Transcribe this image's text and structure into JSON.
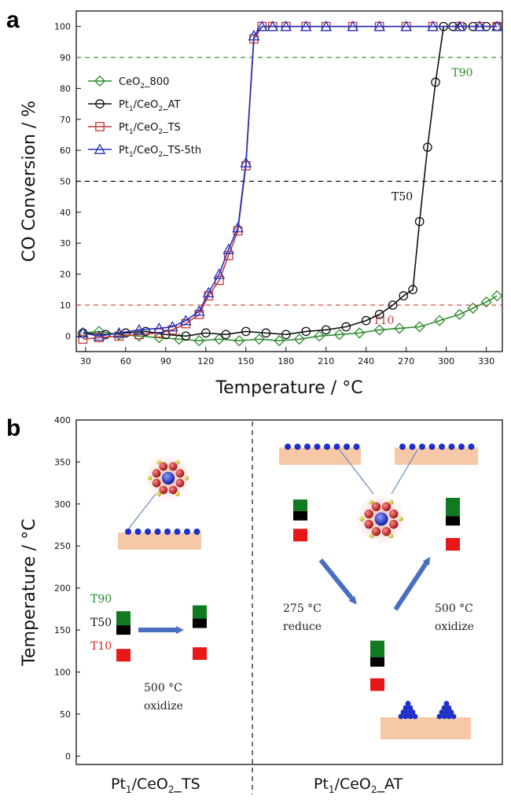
{
  "panel_a": {
    "letter": "a",
    "chart_data": {
      "type": "line",
      "title": "",
      "xlabel": "Temperature / °C",
      "ylabel": "CO Conversion / %",
      "xlim": [
        23,
        342
      ],
      "ylim": [
        -5,
        105
      ],
      "xticks": [
        30,
        60,
        90,
        120,
        150,
        180,
        210,
        240,
        270,
        300,
        330
      ],
      "yticks": [
        0,
        10,
        20,
        30,
        40,
        50,
        60,
        70,
        80,
        90,
        100
      ],
      "reference_lines": [
        {
          "y": 90,
          "color": "#2e8b2e",
          "label": "T90",
          "label_x": 312
        },
        {
          "y": 50,
          "color": "#111111",
          "label": "T50",
          "label_x": 267
        },
        {
          "y": 10,
          "color": "#d63a3a",
          "label": "T10",
          "label_x": 253
        }
      ],
      "legend": "top-left",
      "series": [
        {
          "name": "CeO2_800",
          "legend_main": "CeO",
          "legend_sub": "2",
          "legend_rest": "_800",
          "color": "#2e8b2e",
          "marker": "diamond",
          "x": [
            28,
            40,
            55,
            70,
            85,
            100,
            115,
            130,
            145,
            160,
            175,
            190,
            205,
            220,
            235,
            250,
            265,
            280,
            295,
            310,
            320,
            330,
            338
          ],
          "y": [
            1,
            1.5,
            0.5,
            0,
            -0.5,
            -1,
            -1.5,
            -1,
            -1.5,
            -1,
            -1.5,
            -1,
            0,
            0.5,
            1,
            2,
            2.5,
            3,
            5,
            7,
            9,
            11,
            13
          ]
        },
        {
          "name": "Pt1/CeO2_AT",
          "legend_main": "Pt",
          "legend_sub": "1",
          "legend_rest": "/CeO",
          "legend_sub2": "2",
          "legend_rest2": "_AT",
          "color": "#111111",
          "marker": "circle",
          "x": [
            28,
            45,
            60,
            75,
            90,
            105,
            120,
            135,
            150,
            165,
            180,
            195,
            210,
            225,
            240,
            250,
            260,
            268,
            275,
            280,
            286,
            292,
            298,
            305,
            312,
            320,
            330,
            338
          ],
          "y": [
            1,
            0.5,
            1,
            1.5,
            0.5,
            0,
            1,
            0.5,
            1.5,
            1,
            0.5,
            1.5,
            2,
            3,
            5,
            7,
            10,
            13,
            15,
            37,
            61,
            82,
            100,
            100,
            100,
            100,
            100,
            100
          ]
        },
        {
          "name": "Pt1/CeO2_TS",
          "legend_main": "Pt",
          "legend_sub": "1",
          "legend_rest": "/CeO",
          "legend_sub2": "2",
          "legend_rest2": "_TS",
          "color": "#c0393a",
          "marker": "square",
          "x": [
            28,
            40,
            55,
            70,
            85,
            95,
            105,
            115,
            122,
            130,
            137,
            144,
            150,
            156,
            162,
            170,
            180,
            195,
            210,
            230,
            250,
            270,
            290,
            310,
            325,
            338
          ],
          "y": [
            -1,
            -0.5,
            0,
            0.5,
            1,
            2,
            4,
            7,
            13,
            18,
            26,
            34,
            55,
            96,
            100,
            100,
            100,
            100,
            100,
            100,
            100,
            100,
            100,
            100,
            100,
            100
          ]
        },
        {
          "name": "Pt1/CeO2_TS-5th",
          "legend_main": "Pt",
          "legend_sub": "1",
          "legend_rest": "/CeO",
          "legend_sub2": "2",
          "legend_rest2": "_TS-5th",
          "color": "#2330b8",
          "marker": "triangle",
          "x": [
            28,
            40,
            55,
            70,
            85,
            95,
            105,
            115,
            122,
            130,
            137,
            144,
            150,
            156,
            162,
            170,
            180,
            195,
            210,
            230,
            250,
            270,
            290,
            310,
            325,
            338
          ],
          "y": [
            1,
            0,
            1,
            2,
            2.5,
            3,
            5,
            8,
            14,
            20,
            28,
            35,
            56,
            97,
            100,
            100,
            100,
            100,
            100,
            100,
            100,
            100,
            100,
            100,
            100,
            100
          ]
        }
      ]
    }
  },
  "panel_b": {
    "letter": "b",
    "chart_data": {
      "type": "diagram",
      "ylabel": "Temperature / °C",
      "ylim": [
        -10,
        400
      ],
      "yticks": [
        0,
        50,
        100,
        150,
        200,
        250,
        300,
        350,
        400
      ],
      "categories": [
        "Pt1/CeO2_TS",
        "Pt1/CeO2_AT"
      ],
      "legend_labels": [
        "T90",
        "T50",
        "T10"
      ],
      "blocks": [
        {
          "group": "TS fresh",
          "T90": 163,
          "T50": 150,
          "T10": 120
        },
        {
          "group": "TS oxidized",
          "T90": 170,
          "T50": 158,
          "T10": 122
        },
        {
          "group": "AT fresh",
          "T90": 296,
          "T50": 286,
          "T10": 263
        },
        {
          "group": "AT reduced",
          "T90": 128,
          "T50": 112,
          "T10": 85
        },
        {
          "group": "AT oxidized",
          "T90": 298,
          "T50": 280,
          "T10": 252
        }
      ]
    },
    "annotations": {
      "ts_treatment_temp": "500 °C",
      "ts_treatment": "oxidize",
      "at_reduce_temp": "275 °C",
      "at_reduce": "reduce",
      "at_oxidize_temp": "500 °C",
      "at_oxidize": "oxidize"
    },
    "category_labels": {
      "ts_main": "Pt",
      "ts_sub": "1",
      "ts_mid": "/CeO",
      "ts_sub2": "2",
      "ts_end": "_TS",
      "at_main": "Pt",
      "at_sub": "1",
      "at_mid": "/CeO",
      "at_sub2": "2",
      "at_end": "_AT"
    }
  },
  "colors": {
    "green": "#0f7a1f",
    "red": "#e81818",
    "black": "#000000",
    "arrow": "#4a6fbf",
    "support": "#f7c8a8",
    "pt_atom": "#1f2fc8"
  }
}
